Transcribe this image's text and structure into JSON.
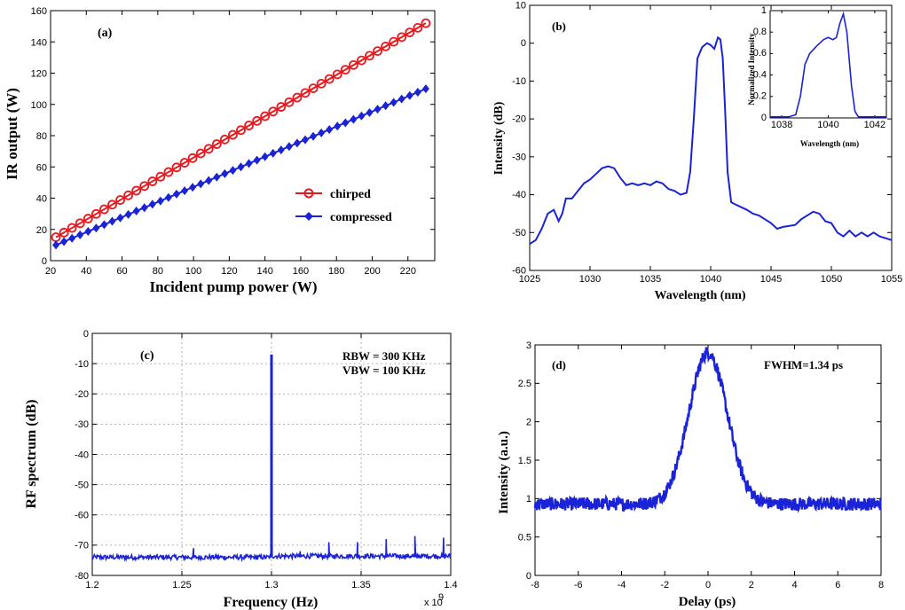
{
  "chart_data": [
    {
      "panel": "(a)",
      "type": "line",
      "xlabel": "Incident pump power (W)",
      "ylabel": "IR output (W)",
      "xlim": [
        20,
        235
      ],
      "ylim": [
        0,
        160
      ],
      "xticks": [
        20,
        40,
        60,
        80,
        100,
        120,
        140,
        160,
        180,
        200,
        220
      ],
      "yticks": [
        0,
        20,
        40,
        60,
        80,
        100,
        120,
        140,
        160
      ],
      "grid": false,
      "legend": "center-right",
      "series": [
        {
          "name": "chirped",
          "color": "#e8191e",
          "marker": "circle",
          "x_start": 23,
          "x_end": 230,
          "y_start": 15,
          "y_end": 152,
          "n": 47
        },
        {
          "name": "compressed",
          "color": "#1a23d6",
          "marker": "diamond",
          "x_start": 23,
          "x_end": 230,
          "y_start": 10,
          "y_end": 110,
          "n": 47
        }
      ]
    },
    {
      "panel": "(b)",
      "type": "line",
      "xlabel": "Wavelength (nm)",
      "ylabel": "Intensity (dB)",
      "xlim": [
        1025,
        1055
      ],
      "ylim": [
        -60,
        10
      ],
      "xticks": [
        1025,
        1030,
        1035,
        1040,
        1045,
        1050,
        1055
      ],
      "yticks": [
        -60,
        -50,
        -40,
        -30,
        -20,
        -10,
        0,
        10
      ],
      "grid": false,
      "color": "#1a23d6",
      "points": [
        [
          1025,
          -53
        ],
        [
          1025.5,
          -52
        ],
        [
          1026,
          -49
        ],
        [
          1026.5,
          -45
        ],
        [
          1027,
          -44
        ],
        [
          1027.4,
          -47
        ],
        [
          1027.7,
          -45
        ],
        [
          1028,
          -41
        ],
        [
          1028.5,
          -41
        ],
        [
          1029,
          -39
        ],
        [
          1029.5,
          -37
        ],
        [
          1030,
          -36
        ],
        [
          1030.5,
          -34.5
        ],
        [
          1031,
          -33
        ],
        [
          1031.5,
          -32.5
        ],
        [
          1032,
          -33
        ],
        [
          1032.5,
          -35.5
        ],
        [
          1033,
          -37.5
        ],
        [
          1033.5,
          -37
        ],
        [
          1034,
          -37.5
        ],
        [
          1034.5,
          -37
        ],
        [
          1035,
          -37.5
        ],
        [
          1035.5,
          -36.5
        ],
        [
          1036,
          -37
        ],
        [
          1036.5,
          -38.5
        ],
        [
          1037,
          -39
        ],
        [
          1037.5,
          -40
        ],
        [
          1038,
          -39.5
        ],
        [
          1038.3,
          -34
        ],
        [
          1038.6,
          -20
        ],
        [
          1038.9,
          -4
        ],
        [
          1039.3,
          -1
        ],
        [
          1039.7,
          0
        ],
        [
          1040,
          -0.5
        ],
        [
          1040.3,
          -1.5
        ],
        [
          1040.6,
          1.5
        ],
        [
          1040.8,
          1
        ],
        [
          1041,
          -4
        ],
        [
          1041.2,
          -18
        ],
        [
          1041.4,
          -34
        ],
        [
          1041.7,
          -42
        ],
        [
          1042,
          -42.5
        ],
        [
          1043,
          -44
        ],
        [
          1043.5,
          -45
        ],
        [
          1044,
          -45.5
        ],
        [
          1045,
          -47.5
        ],
        [
          1045.5,
          -49
        ],
        [
          1046,
          -48.5
        ],
        [
          1047,
          -48
        ],
        [
          1047.5,
          -46.5
        ],
        [
          1048,
          -45.5
        ],
        [
          1048.5,
          -44.5
        ],
        [
          1049,
          -45
        ],
        [
          1049.5,
          -47
        ],
        [
          1050,
          -47.5
        ],
        [
          1050.5,
          -50
        ],
        [
          1051,
          -51
        ],
        [
          1051.5,
          -49.5
        ],
        [
          1052,
          -51
        ],
        [
          1052.5,
          -50
        ],
        [
          1053,
          -51
        ],
        [
          1053.5,
          -50
        ],
        [
          1054,
          -51
        ],
        [
          1055,
          -52
        ]
      ],
      "inset": {
        "xlabel": "Wavelength (nm)",
        "ylabel": "Normalized Intensity",
        "xlim": [
          1037.5,
          1042.5
        ],
        "ylim": [
          0,
          1
        ],
        "xticks": [
          1038,
          1040,
          1042
        ],
        "yticks": [
          0,
          0.2,
          0.4,
          0.6,
          0.8,
          1
        ],
        "points": [
          [
            1037.5,
            0.01
          ],
          [
            1038.3,
            0.01
          ],
          [
            1038.6,
            0.03
          ],
          [
            1038.8,
            0.2
          ],
          [
            1039.0,
            0.5
          ],
          [
            1039.2,
            0.6
          ],
          [
            1039.5,
            0.67
          ],
          [
            1039.8,
            0.73
          ],
          [
            1040.0,
            0.75
          ],
          [
            1040.2,
            0.73
          ],
          [
            1040.35,
            0.75
          ],
          [
            1040.5,
            0.88
          ],
          [
            1040.65,
            0.97
          ],
          [
            1040.8,
            0.8
          ],
          [
            1041.0,
            0.3
          ],
          [
            1041.15,
            0.06
          ],
          [
            1041.3,
            0.01
          ],
          [
            1042.5,
            0.01
          ]
        ]
      }
    },
    {
      "panel": "(c)",
      "type": "line",
      "xlabel": "Frequency (Hz)",
      "ylabel": "RF spectrum (dB)",
      "x_multiplier": "x 10",
      "x_multiplier_exp": "9",
      "xlim": [
        1.2,
        1.4
      ],
      "ylim": [
        -80,
        0
      ],
      "xticks": [
        "1.2",
        "1.25",
        "1.3",
        "1.35",
        "1.4"
      ],
      "yticks": [
        -80,
        -70,
        -60,
        -50,
        -40,
        -30,
        -20,
        -10,
        0
      ],
      "grid": true,
      "color": "#1a23d6",
      "annotations": [
        "RBW = 300 KHz",
        "VBW = 100 KHz"
      ],
      "baseline_db": -74,
      "peaks": [
        [
          1.3,
          -7
        ],
        [
          1.2565,
          -71
        ],
        [
          1.316,
          -72
        ],
        [
          1.332,
          -69
        ],
        [
          1.348,
          -69
        ],
        [
          1.364,
          -68
        ],
        [
          1.38,
          -67
        ],
        [
          1.396,
          -67.5
        ]
      ]
    },
    {
      "panel": "(d)",
      "type": "line",
      "xlabel": "Delay (ps)",
      "ylabel": "Intensity (a.u.)",
      "xlim": [
        -8,
        8
      ],
      "ylim": [
        0,
        3
      ],
      "xticks": [
        -8,
        -6,
        -4,
        -2,
        0,
        2,
        4,
        6,
        8
      ],
      "yticks": [
        0,
        0.5,
        1,
        1.5,
        2,
        2.5,
        3
      ],
      "grid": false,
      "color": "#1a23d6",
      "annotations": [
        "FWHM=1.34 ps"
      ],
      "baseline": 0.93,
      "peak": 2.9,
      "fwhm_ps": 1.34
    }
  ]
}
